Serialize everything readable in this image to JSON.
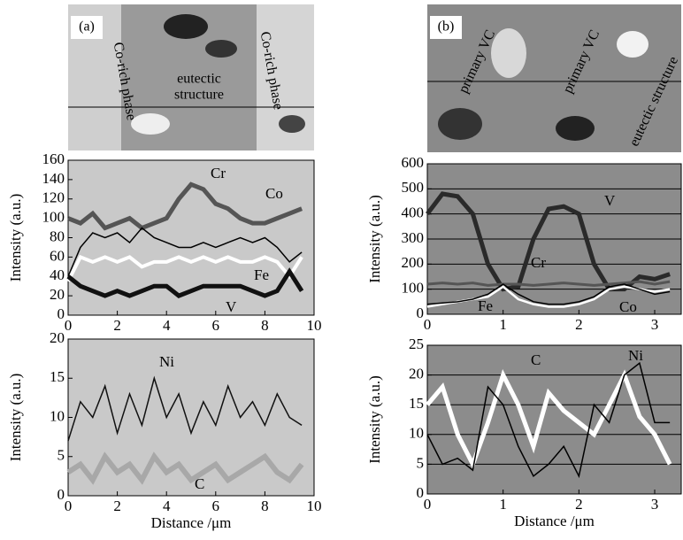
{
  "micrographs": [
    {
      "label": "(a)",
      "annotations": [
        "Co-rich phase",
        "eutectic",
        "structure",
        "Co-rich phase"
      ]
    },
    {
      "label": "(b)",
      "annotations": [
        "primary VC",
        "primary VC",
        "eutectic structure"
      ]
    }
  ],
  "chart_data": [
    {
      "type": "line",
      "ylabel": "Intensity (a.u.)",
      "xlim": [
        0,
        10
      ],
      "xticks": [
        0,
        2,
        4,
        6,
        8,
        10
      ],
      "ylim": [
        0,
        160
      ],
      "yticks": [
        0,
        20,
        40,
        60,
        80,
        100,
        120,
        140,
        160
      ],
      "grid": false,
      "background": "#c9c9c9",
      "x": [
        0,
        0.5,
        1,
        1.5,
        2,
        2.5,
        3,
        3.5,
        4,
        4.5,
        5,
        5.5,
        6,
        6.5,
        7,
        7.5,
        8,
        8.5,
        9,
        9.5
      ],
      "series": [
        {
          "name": "Cr",
          "color": "#555555",
          "values": [
            100,
            95,
            105,
            90,
            95,
            100,
            90,
            95,
            100,
            120,
            135,
            130,
            115,
            110,
            100,
            95,
            95,
            100,
            105,
            110
          ]
        },
        {
          "name": "Co",
          "color": "#000000",
          "values": [
            40,
            70,
            85,
            80,
            85,
            75,
            90,
            80,
            75,
            70,
            70,
            75,
            70,
            75,
            80,
            75,
            80,
            70,
            55,
            65
          ]
        },
        {
          "name": "Fe",
          "color": "#ffffff",
          "values": [
            35,
            60,
            55,
            60,
            55,
            60,
            50,
            55,
            55,
            60,
            55,
            60,
            55,
            60,
            55,
            55,
            60,
            55,
            40,
            60
          ]
        },
        {
          "name": "V",
          "color": "#111111",
          "values": [
            40,
            30,
            25,
            20,
            25,
            20,
            25,
            30,
            30,
            20,
            25,
            30,
            30,
            30,
            30,
            25,
            20,
            25,
            45,
            25
          ]
        }
      ]
    },
    {
      "type": "line",
      "ylabel": "Intensity (a.u.)",
      "xlabel": "Distance /μm",
      "xlim": [
        0,
        10
      ],
      "xticks": [
        0,
        2,
        4,
        6,
        8,
        10
      ],
      "ylim": [
        0,
        20
      ],
      "yticks": [
        0,
        5,
        10,
        15,
        20
      ],
      "grid": false,
      "background": "#c9c9c9",
      "x": [
        0,
        0.5,
        1,
        1.5,
        2,
        2.5,
        3,
        3.5,
        4,
        4.5,
        5,
        5.5,
        6,
        6.5,
        7,
        7.5,
        8,
        8.5,
        9,
        9.5
      ],
      "series": [
        {
          "name": "C",
          "color": "#a8a8a8",
          "values": [
            3,
            4,
            2,
            5,
            3,
            4,
            2,
            5,
            3,
            4,
            2,
            3,
            4,
            2,
            3,
            4,
            5,
            3,
            2,
            4
          ]
        },
        {
          "name": "Ni",
          "color": "#111111",
          "values": [
            7,
            12,
            10,
            14,
            8,
            13,
            9,
            15,
            10,
            13,
            8,
            12,
            9,
            14,
            10,
            12,
            9,
            13,
            10,
            9
          ]
        }
      ]
    },
    {
      "type": "line",
      "ylabel": "Intensity (a.u.)",
      "xlim": [
        0,
        3.35
      ],
      "xticks": [
        0,
        1,
        2,
        3
      ],
      "ylim": [
        0,
        600
      ],
      "yticks": [
        0,
        100,
        200,
        300,
        400,
        500,
        600
      ],
      "grid": true,
      "background": "#8c8c8c",
      "x": [
        0,
        0.2,
        0.4,
        0.6,
        0.8,
        1,
        1.2,
        1.4,
        1.6,
        1.8,
        2,
        2.2,
        2.4,
        2.6,
        2.8,
        3,
        3.2
      ],
      "series": [
        {
          "name": "V",
          "color": "#2a2a2a",
          "values": [
            400,
            480,
            470,
            400,
            200,
            100,
            110,
            300,
            420,
            430,
            400,
            200,
            100,
            100,
            150,
            140,
            160
          ]
        },
        {
          "name": "Cr",
          "color": "#555555",
          "values": [
            120,
            125,
            120,
            125,
            115,
            120,
            120,
            115,
            120,
            125,
            120,
            115,
            120,
            125,
            130,
            120,
            130
          ]
        },
        {
          "name": "Fe",
          "color": "#ffffff",
          "values": [
            30,
            40,
            50,
            60,
            70,
            110,
            60,
            40,
            30,
            30,
            40,
            60,
            100,
            110,
            100,
            90,
            100
          ]
        },
        {
          "name": "Co",
          "color": "#000000",
          "values": [
            40,
            45,
            50,
            60,
            80,
            120,
            80,
            50,
            40,
            40,
            50,
            70,
            110,
            120,
            100,
            80,
            90
          ]
        }
      ]
    },
    {
      "type": "line",
      "ylabel": "Intensity (a.u.)",
      "xlabel": "Distance /μm",
      "xlim": [
        0,
        3.35
      ],
      "xticks": [
        0,
        1,
        2,
        3
      ],
      "ylim": [
        0,
        25
      ],
      "yticks": [
        0,
        5,
        10,
        15,
        20,
        25
      ],
      "grid": true,
      "background": "#8c8c8c",
      "x": [
        0,
        0.2,
        0.4,
        0.6,
        0.8,
        1,
        1.2,
        1.4,
        1.6,
        1.8,
        2,
        2.2,
        2.4,
        2.6,
        2.8,
        3,
        3.2
      ],
      "series": [
        {
          "name": "C",
          "color": "#ffffff",
          "values": [
            15,
            18,
            10,
            5,
            12,
            20,
            15,
            8,
            17,
            14,
            12,
            10,
            15,
            20,
            13,
            10,
            5
          ]
        },
        {
          "name": "Ni",
          "color": "#000000",
          "values": [
            10,
            5,
            6,
            4,
            18,
            15,
            8,
            3,
            5,
            8,
            3,
            15,
            12,
            20,
            22,
            12,
            12
          ]
        }
      ]
    }
  ]
}
